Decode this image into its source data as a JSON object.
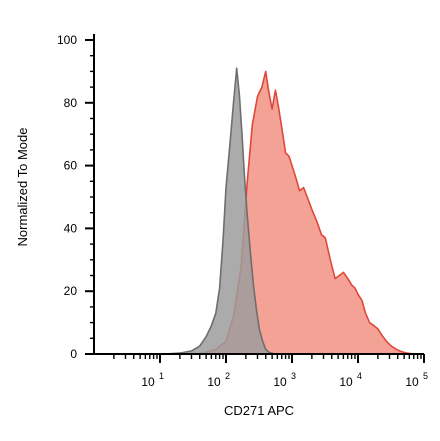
{
  "chart_data": {
    "type": "area",
    "title": "",
    "xlabel": "CD271 APC",
    "ylabel": "Normalized To Mode",
    "x_scale": "log",
    "xlim": [
      1,
      100000
    ],
    "ylim": [
      0,
      100
    ],
    "x_ticks": [
      {
        "value": 10,
        "base": "10",
        "exp": "1"
      },
      {
        "value": 100,
        "base": "10",
        "exp": "2"
      },
      {
        "value": 1000,
        "base": "10",
        "exp": "3"
      },
      {
        "value": 10000,
        "base": "10",
        "exp": "4"
      },
      {
        "value": 100000,
        "base": "10",
        "exp": "5"
      }
    ],
    "y_ticks": [
      0,
      20,
      40,
      60,
      80,
      100
    ],
    "grid": false,
    "legend": "none",
    "series": [
      {
        "color": "#e0473b",
        "fill": "#f4a296",
        "x": [
          38,
          50,
          70,
          100,
          130,
          170,
          210,
          250,
          300,
          350,
          400,
          440,
          500,
          560,
          620,
          700,
          800,
          900,
          1000,
          1150,
          1300,
          1500,
          1700,
          2000,
          2400,
          2800,
          3200,
          3800,
          4500,
          5200,
          6000,
          7000,
          8000,
          9000,
          10000,
          11500,
          13000,
          15000,
          17500,
          20000,
          23000,
          27000,
          32000,
          38000,
          45000,
          55000,
          70000
        ],
        "y": [
          0,
          0.6,
          1.5,
          4,
          12,
          28,
          55,
          73,
          82,
          85,
          90,
          84,
          78,
          84,
          79,
          72,
          64,
          63,
          60,
          56,
          52,
          53,
          50,
          46,
          42,
          38,
          37,
          30,
          24,
          25,
          26,
          24,
          22,
          21,
          19,
          17,
          13,
          10,
          9,
          8,
          6,
          4,
          2.5,
          1.5,
          0.8,
          0.3,
          0
        ]
      },
      {
        "color": "#6e6e6e",
        "fill": "#9c9c9c",
        "x": [
          12,
          20,
          30,
          40,
          50,
          60,
          70,
          80,
          90,
          100,
          115,
          130,
          145,
          160,
          175,
          190,
          210,
          235,
          260,
          290,
          320,
          360,
          400,
          450,
          550
        ],
        "y": [
          0,
          0.3,
          1,
          2.5,
          5.5,
          9,
          13,
          21,
          36,
          53,
          67,
          80,
          91,
          82,
          70,
          57,
          44,
          32,
          22,
          14,
          8,
          4,
          1.5,
          0.5,
          0
        ]
      }
    ]
  }
}
